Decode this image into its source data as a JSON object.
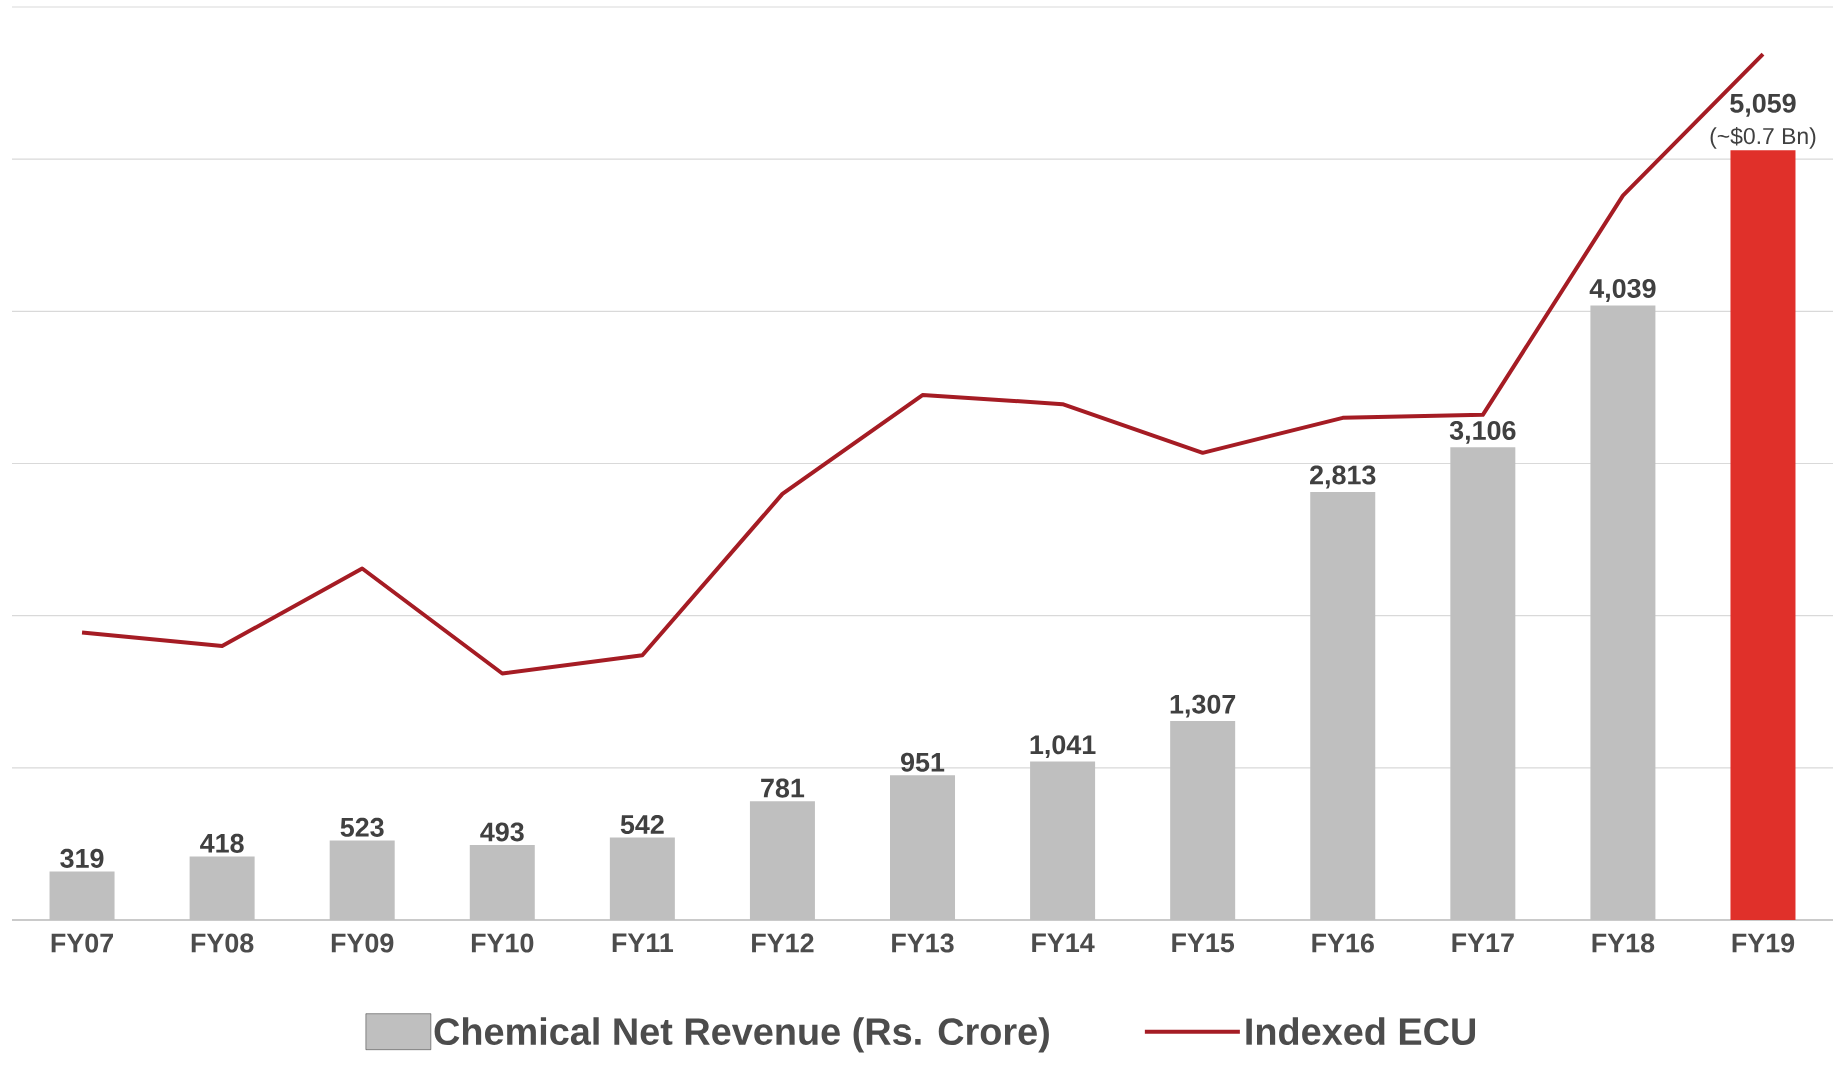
{
  "chart_data": {
    "type": "bar",
    "categories": [
      "FY07",
      "FY08",
      "FY09",
      "FY10",
      "FY11",
      "FY12",
      "FY13",
      "FY14",
      "FY15",
      "FY16",
      "FY17",
      "FY18",
      "FY19"
    ],
    "series": [
      {
        "name": "Chemical Net Revenue (Rs. Crore)",
        "values": [
          319,
          418,
          523,
          493,
          542,
          781,
          951,
          1041,
          1307,
          2813,
          3106,
          4039,
          5059
        ],
        "colors": [
          "#bfbfbf",
          "#bfbfbf",
          "#bfbfbf",
          "#bfbfbf",
          "#bfbfbf",
          "#bfbfbf",
          "#bfbfbf",
          "#bfbfbf",
          "#bfbfbf",
          "#bfbfbf",
          "#bfbfbf",
          "#bfbfbf",
          "#e0302a"
        ],
        "value_labels": [
          "319",
          "418",
          "523",
          "493",
          "542",
          "781",
          "951",
          "1,041",
          "1,307",
          "2,813",
          "3,106",
          "4,039",
          "5,059"
        ]
      },
      {
        "name": "Indexed ECU",
        "type": "line",
        "color": "#a51c24",
        "values": [
          1890,
          1800,
          2310,
          1620,
          1740,
          2800,
          3450,
          3390,
          3070,
          3300,
          3320,
          4760,
          5690
        ]
      }
    ],
    "annotations": [
      {
        "text": "(~$0.7 Bn)",
        "x": "FY19",
        "y": 5059
      }
    ],
    "ylim": [
      0,
      6000
    ],
    "yticks": [
      {
        "value": 0,
        "label": null
      },
      {
        "value": 1000,
        "label": null
      },
      {
        "value": 2000,
        "label": null
      },
      {
        "value": 3000,
        "label": null
      },
      {
        "value": 4000,
        "label": null
      },
      {
        "value": 5000,
        "label": null
      },
      {
        "value": 6000,
        "label": null
      }
    ],
    "tick_labels": "x",
    "grid": "y",
    "legend": "bottom",
    "marker": "none",
    "line_style": "solid"
  }
}
